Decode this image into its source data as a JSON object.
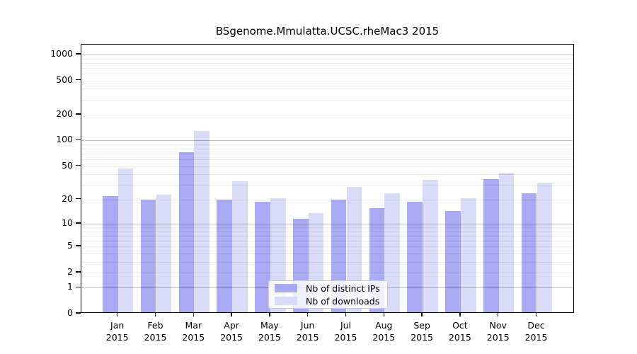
{
  "title": "BSgenome.Mmulatta.UCSC.rheMac3 2015",
  "colors": {
    "distinct_ips_bar": "#a9a9f4",
    "downloads_bar": "#dadaf9",
    "major_gridline": "#c3c3c3",
    "minor_gridline": "#ededed",
    "axis": "#000000",
    "legend_border": "#cccccc"
  },
  "legend": {
    "items": [
      {
        "label": "Nb of distinct IPs",
        "color": "#a9a9f4"
      },
      {
        "label": "Nb of downloads",
        "color": "#dadaf9"
      }
    ]
  },
  "chart_data": {
    "type": "bar",
    "title": "BSgenome.Mmulatta.UCSC.rheMac3 2015",
    "categories": [
      "Jan 2015",
      "Feb 2015",
      "Mar 2015",
      "Apr 2015",
      "May 2015",
      "Jun 2015",
      "Jul 2015",
      "Aug 2015",
      "Sep 2015",
      "Oct 2015",
      "Nov 2015",
      "Dec 2015"
    ],
    "series": [
      {
        "name": "Nb of distinct IPs",
        "color": "#a9a9f4",
        "values": [
          21,
          19,
          70,
          19,
          18,
          11,
          19,
          15,
          18,
          14,
          34,
          23
        ]
      },
      {
        "name": "Nb of downloads",
        "color": "#dadaf9",
        "values": [
          45,
          22,
          125,
          32,
          20,
          13,
          27,
          23,
          33,
          20,
          40,
          30
        ]
      }
    ],
    "xlabel": "",
    "ylabel": "",
    "y_scale": "log1p",
    "ylim": [
      0,
      1000
    ],
    "y_ticks": [
      0,
      1,
      2,
      5,
      10,
      20,
      50,
      100,
      200,
      500,
      1000
    ],
    "y_major_gridlines": [
      1,
      10,
      100,
      1000
    ],
    "y_minor_gridlines": [
      2,
      3,
      4,
      5,
      6,
      7,
      8,
      9,
      20,
      30,
      40,
      50,
      60,
      70,
      80,
      90,
      200,
      300,
      400,
      500,
      600,
      700,
      800,
      900
    ],
    "grid": true,
    "legend_position": "bottom-center"
  }
}
